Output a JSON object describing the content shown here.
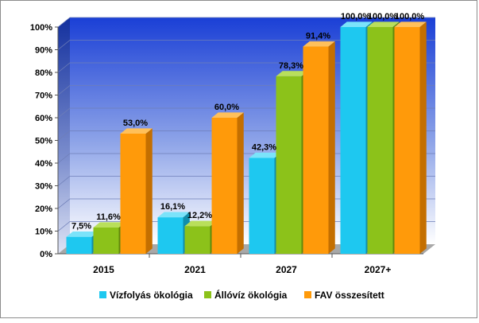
{
  "chart_data": {
    "type": "bar",
    "categories": [
      "2015",
      "2021",
      "2027",
      "2027+"
    ],
    "series": [
      {
        "name": "Vízfolyás ökológia",
        "values": [
          7.5,
          16.1,
          42.3,
          100.0
        ],
        "labels": [
          "7,5%",
          "16,1%",
          "42,3%",
          "100,0%"
        ]
      },
      {
        "name": "Állóvíz ökológia",
        "values": [
          11.6,
          12.2,
          78.3,
          100.0
        ],
        "labels": [
          "11,6%",
          "12,2%",
          "78,3%",
          "100,0%"
        ]
      },
      {
        "name": "FAV összesített",
        "values": [
          53.0,
          60.0,
          91.4,
          100.0
        ],
        "labels": [
          "53,0%",
          "60,0%",
          "91,4%",
          "100,0%"
        ]
      }
    ],
    "yticks": [
      "0%",
      "10%",
      "20%",
      "30%",
      "40%",
      "50%",
      "60%",
      "70%",
      "80%",
      "90%",
      "100%"
    ],
    "ylim": [
      0,
      100
    ],
    "title": "",
    "xlabel": "",
    "ylabel": "",
    "grid": true,
    "legend_position": "bottom",
    "colors": {
      "series": [
        "#1ec8f0",
        "#8cc21a",
        "#ff9a0a"
      ],
      "series_top": [
        "#7be3fa",
        "#b9df5b",
        "#ffc05a"
      ],
      "series_side": [
        "#118eab",
        "#5f8a0c",
        "#c46f00"
      ],
      "background_top": "#1a3fd6",
      "background_bottom": "#ffffff",
      "floor": "#a8a8a8"
    }
  }
}
